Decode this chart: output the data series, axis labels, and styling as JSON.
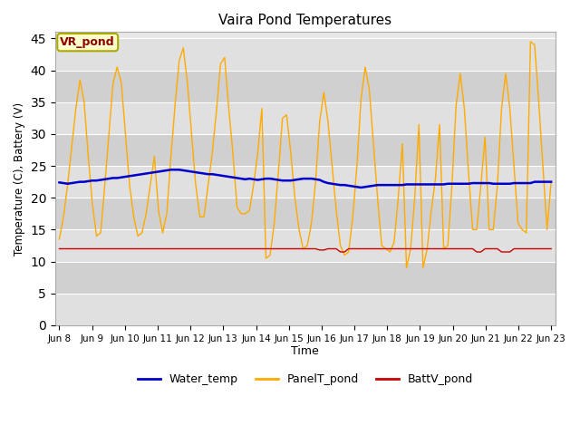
{
  "title": "Vaira Pond Temperatures",
  "xlabel": "Time",
  "ylabel": "Temperature (C), Battery (V)",
  "annotation": "VR_pond",
  "ylim": [
    0,
    46
  ],
  "yticks": [
    0,
    5,
    10,
    15,
    20,
    25,
    30,
    35,
    40,
    45
  ],
  "x_labels": [
    "Jun 8",
    "Jun 9",
    "Jun 10",
    "Jun 11",
    "Jun 12",
    "Jun 13",
    "Jun 14",
    "Jun 15",
    "Jun 16",
    "Jun 17",
    "Jun 18",
    "Jun 19",
    "Jun 20",
    "Jun 21",
    "Jun 22",
    "Jun 23"
  ],
  "water_color": "#0000cc",
  "panel_color": "#ffaa00",
  "batt_color": "#cc0000",
  "bg_color": "#ffffff",
  "plot_bg": "#e8e8e8",
  "legend_labels": [
    "Water_temp",
    "PanelT_pond",
    "BattV_pond"
  ],
  "band_colors": [
    "#e0e0e0",
    "#d0d0d0"
  ],
  "water_temp": [
    22.4,
    22.3,
    22.2,
    22.3,
    22.4,
    22.5,
    22.5,
    22.6,
    22.7,
    22.7,
    22.8,
    22.9,
    23.0,
    23.1,
    23.1,
    23.2,
    23.3,
    23.4,
    23.5,
    23.6,
    23.7,
    23.8,
    23.9,
    24.0,
    24.1,
    24.2,
    24.3,
    24.4,
    24.4,
    24.4,
    24.3,
    24.2,
    24.1,
    24.0,
    23.9,
    23.8,
    23.7,
    23.7,
    23.6,
    23.5,
    23.4,
    23.3,
    23.2,
    23.1,
    23.0,
    22.9,
    23.0,
    22.9,
    22.8,
    22.9,
    23.0,
    23.0,
    22.9,
    22.8,
    22.7,
    22.7,
    22.7,
    22.8,
    22.9,
    23.0,
    23.0,
    23.0,
    22.9,
    22.8,
    22.5,
    22.3,
    22.2,
    22.1,
    22.0,
    22.0,
    21.9,
    21.8,
    21.7,
    21.6,
    21.7,
    21.8,
    21.9,
    22.0,
    22.0,
    22.0,
    22.0,
    22.0,
    22.0,
    22.0,
    22.1,
    22.1,
    22.1,
    22.1,
    22.1,
    22.1,
    22.1,
    22.1,
    22.1,
    22.1,
    22.2,
    22.2,
    22.2,
    22.2,
    22.2,
    22.2,
    22.3,
    22.3,
    22.3,
    22.3,
    22.3,
    22.2,
    22.2,
    22.2,
    22.2,
    22.2,
    22.3,
    22.3,
    22.3,
    22.3,
    22.3,
    22.5,
    22.5,
    22.5,
    22.5,
    22.5
  ],
  "panel_temp": [
    13.5,
    17.0,
    22.0,
    28.0,
    34.0,
    38.5,
    35.0,
    26.5,
    19.0,
    14.0,
    14.5,
    22.0,
    30.0,
    38.0,
    40.5,
    38.0,
    30.0,
    22.0,
    17.0,
    14.0,
    14.5,
    17.5,
    22.0,
    26.5,
    18.0,
    14.5,
    17.5,
    26.5,
    34.5,
    41.5,
    43.5,
    38.0,
    30.0,
    22.0,
    17.0,
    17.0,
    22.0,
    27.0,
    33.5,
    41.0,
    42.0,
    34.0,
    27.0,
    18.5,
    17.5,
    17.5,
    18.0,
    22.0,
    27.0,
    34.0,
    10.5,
    11.0,
    16.0,
    24.0,
    32.5,
    33.0,
    27.0,
    20.0,
    15.0,
    12.0,
    12.5,
    16.0,
    22.5,
    32.0,
    36.5,
    32.0,
    25.0,
    18.0,
    12.5,
    11.0,
    11.5,
    17.0,
    25.0,
    35.5,
    40.5,
    37.0,
    28.5,
    20.0,
    12.5,
    12.0,
    11.5,
    13.0,
    20.0,
    28.5,
    9.0,
    12.0,
    20.0,
    31.5,
    9.0,
    12.0,
    18.0,
    23.0,
    31.5,
    12.0,
    12.5,
    22.0,
    34.5,
    39.5,
    34.0,
    24.0,
    15.0,
    15.0,
    22.0,
    29.5,
    15.0,
    15.0,
    22.0,
    34.0,
    39.5,
    34.0,
    25.0,
    16.0,
    15.0,
    14.5,
    44.5,
    44.0,
    35.0,
    25.0,
    15.0,
    22.5
  ],
  "batt_v": [
    12.0,
    12.0,
    12.0,
    12.0,
    12.0,
    12.0,
    12.0,
    12.0,
    12.0,
    12.0,
    12.0,
    12.0,
    12.0,
    12.0,
    12.0,
    12.0,
    12.0,
    12.0,
    12.0,
    12.0,
    12.0,
    12.0,
    12.0,
    12.0,
    12.0,
    12.0,
    12.0,
    12.0,
    12.0,
    12.0,
    12.0,
    12.0,
    12.0,
    12.0,
    12.0,
    12.0,
    12.0,
    12.0,
    12.0,
    12.0,
    12.0,
    12.0,
    12.0,
    12.0,
    12.0,
    12.0,
    12.0,
    12.0,
    12.0,
    12.0,
    12.0,
    12.0,
    12.0,
    12.0,
    12.0,
    12.0,
    12.0,
    12.0,
    12.0,
    12.0,
    12.0,
    12.0,
    12.0,
    11.8,
    11.8,
    12.0,
    12.0,
    12.0,
    11.5,
    11.5,
    12.0,
    12.0,
    12.0,
    12.0,
    12.0,
    12.0,
    12.0,
    12.0,
    12.0,
    12.0,
    12.0,
    12.0,
    12.0,
    12.0,
    12.0,
    12.0,
    12.0,
    12.0,
    12.0,
    12.0,
    12.0,
    12.0,
    12.0,
    12.0,
    12.0,
    12.0,
    12.0,
    12.0,
    12.0,
    12.0,
    12.0,
    11.5,
    11.5,
    12.0,
    12.0,
    12.0,
    12.0,
    11.5,
    11.5,
    11.5,
    12.0,
    12.0,
    12.0,
    12.0,
    12.0,
    12.0,
    12.0,
    12.0,
    12.0,
    12.0
  ]
}
